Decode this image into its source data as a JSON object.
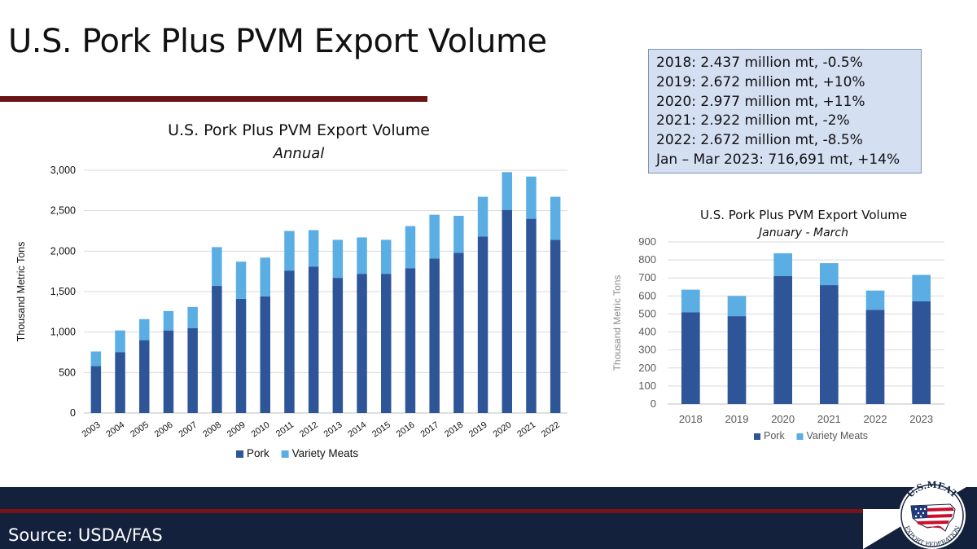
{
  "slide": {
    "title": "U.S. Pork Plus PVM Export Volume",
    "source": "Source: USDA/FAS",
    "colors": {
      "rule": "#6b1416",
      "footer_dark": "#14213d",
      "stats_box_fill": "#d4dff2",
      "pork": "#2e5597",
      "variety_meats": "#5aaee4"
    }
  },
  "stats_box": {
    "lines": [
      "2018: 2.437 million mt, -0.5%",
      "2019: 2.672 million mt, +10%",
      "2020: 2.977 million mt, +11%",
      "2021: 2.922 million mt, -2%",
      "2022: 2.672 million mt, -8.5%",
      "Jan – Mar 2023: 716,691 mt, +14%"
    ]
  },
  "logo": {
    "top_text": "U.S.MEAT",
    "bottom_text": "EXPORT FEDERATION"
  },
  "chart_data": [
    {
      "type": "bar",
      "stacked": true,
      "title": "U.S. Pork Plus PVM Export Volume",
      "subtitle": "Annual",
      "xlabel": "",
      "ylabel": "Thousand Metric Tons",
      "ylim": [
        0,
        3000
      ],
      "yticks": [
        0,
        500,
        1000,
        1500,
        2000,
        2500,
        3000
      ],
      "ytick_labels": [
        "0",
        "500",
        "1,000",
        "1,500",
        "2,000",
        "2,500",
        "3,000"
      ],
      "grid": true,
      "legend": "bottom",
      "categories": [
        "2003",
        "2004",
        "2005",
        "2006",
        "2007",
        "2008",
        "2009",
        "2010",
        "2011",
        "2012",
        "2013",
        "2014",
        "2015",
        "2016",
        "2017",
        "2018",
        "2019",
        "2020",
        "2021",
        "2022"
      ],
      "series": [
        {
          "name": "Pork",
          "color": "#2e5597",
          "values": [
            580,
            750,
            900,
            1020,
            1050,
            1570,
            1410,
            1440,
            1760,
            1810,
            1670,
            1720,
            1720,
            1790,
            1910,
            1980,
            2180,
            2510,
            2400,
            2140
          ]
        },
        {
          "name": "Variety Meats",
          "color": "#5aaee4",
          "values": [
            180,
            270,
            260,
            240,
            260,
            480,
            460,
            480,
            490,
            450,
            470,
            450,
            420,
            520,
            540,
            457,
            492,
            467,
            522,
            532
          ]
        }
      ]
    },
    {
      "type": "bar",
      "stacked": true,
      "title": "U.S. Pork Plus PVM Export Volume",
      "subtitle": "January - March",
      "xlabel": "",
      "ylabel": "Thousand Metric Tons",
      "ylim": [
        0,
        900
      ],
      "yticks": [
        0,
        100,
        200,
        300,
        400,
        500,
        600,
        700,
        800,
        900
      ],
      "ytick_labels": [
        "0",
        "100",
        "200",
        "300",
        "400",
        "500",
        "600",
        "700",
        "800",
        "900"
      ],
      "grid": true,
      "legend": "bottom",
      "categories": [
        "2018",
        "2019",
        "2020",
        "2021",
        "2022",
        "2023"
      ],
      "series": [
        {
          "name": "Pork",
          "color": "#2e5597",
          "values": [
            510,
            488,
            710,
            660,
            523,
            570
          ]
        },
        {
          "name": "Variety Meats",
          "color": "#5aaee4",
          "values": [
            125,
            112,
            127,
            122,
            107,
            147
          ]
        }
      ]
    }
  ]
}
